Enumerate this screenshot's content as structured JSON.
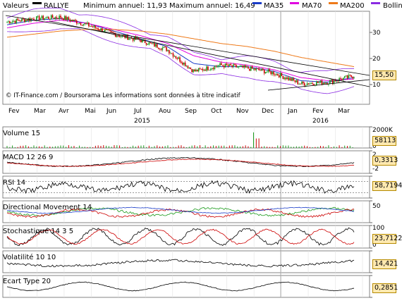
{
  "legend": {
    "valeurs_label": "Valeurs",
    "valeurs_name": "RALLYE",
    "minmax": "Minimum annuel: 11,93 Maximum annuel: 16,49",
    "ma35": "MA35",
    "ma70": "MA70",
    "ma200": "MA200",
    "boll": "Bollin"
  },
  "colors": {
    "price": "#000000",
    "ma35": "#1a3cc8",
    "ma70": "#e000e0",
    "ma200": "#ee7a1a",
    "boll": "#8a2be2",
    "up": "#1a9a1a",
    "down": "#cc0000",
    "highlight": "#ffe9b0"
  },
  "copyright": "© IT-Finance.com / Boursorama Les informations sont données à titre indicatif",
  "months": [
    "Fev",
    "Mar",
    "Avr",
    "Mai",
    "Jun",
    "Jul",
    "Aou",
    "Sep",
    "Oct",
    "Nov",
    "Dec",
    "Jan",
    "Fev",
    "Mar"
  ],
  "years": [
    "2015",
    "2016"
  ],
  "panels": {
    "price": {
      "ticks": [
        "30",
        "20",
        "10"
      ],
      "value": "15,50"
    },
    "volume": {
      "title": "Volume 15",
      "ticks": [
        "2000K",
        "0"
      ],
      "value": "58113"
    },
    "macd": {
      "title": "MACD 12 26 9",
      "ticks": [
        "2",
        "-2"
      ],
      "value": "0,3313"
    },
    "rsi": {
      "title": "RSI 14",
      "ticks": [],
      "value": "58,7194"
    },
    "dm": {
      "title": "Directional Movement 14",
      "ticks": [
        "50"
      ],
      "value": ""
    },
    "stoch": {
      "title": "Stochastique 14 3 5",
      "ticks": [
        "100",
        "0"
      ],
      "value": "23,7122"
    },
    "vol": {
      "title": "Volatilité 10 10",
      "ticks": [],
      "value": "14,421"
    },
    "ecart": {
      "title": "Ecart Type 20",
      "ticks": [],
      "value": "0,2851"
    }
  },
  "chart_data": {
    "type": "line",
    "title": "RALLYE",
    "x": [
      "Fev",
      "Mar",
      "Avr",
      "Mai",
      "Jun",
      "Jul",
      "Aou",
      "Sep",
      "Oct",
      "Nov",
      "Dec",
      "Jan",
      "Fev",
      "Mar"
    ],
    "ylim": [
      10,
      35
    ],
    "series": [
      {
        "name": "RALLYE",
        "values": [
          33,
          34,
          34.5,
          32,
          29,
          27,
          24,
          17,
          19,
          18,
          16.5,
          13,
          13.5,
          15.5
        ]
      },
      {
        "name": "MA35",
        "values": [
          32,
          33.5,
          34,
          32.5,
          30,
          27.5,
          25,
          19.5,
          18.5,
          18.5,
          17,
          14,
          13.5,
          15
        ]
      },
      {
        "name": "MA70",
        "values": [
          31,
          32.5,
          33.5,
          32.5,
          30.5,
          28.5,
          26,
          22,
          20,
          19,
          17.5,
          15,
          14,
          14.5
        ]
      },
      {
        "name": "MA200",
        "values": [
          28,
          29,
          30,
          30.5,
          30.5,
          30,
          29,
          27.5,
          26,
          25,
          23.5,
          21.5,
          20,
          18.5
        ]
      }
    ]
  }
}
